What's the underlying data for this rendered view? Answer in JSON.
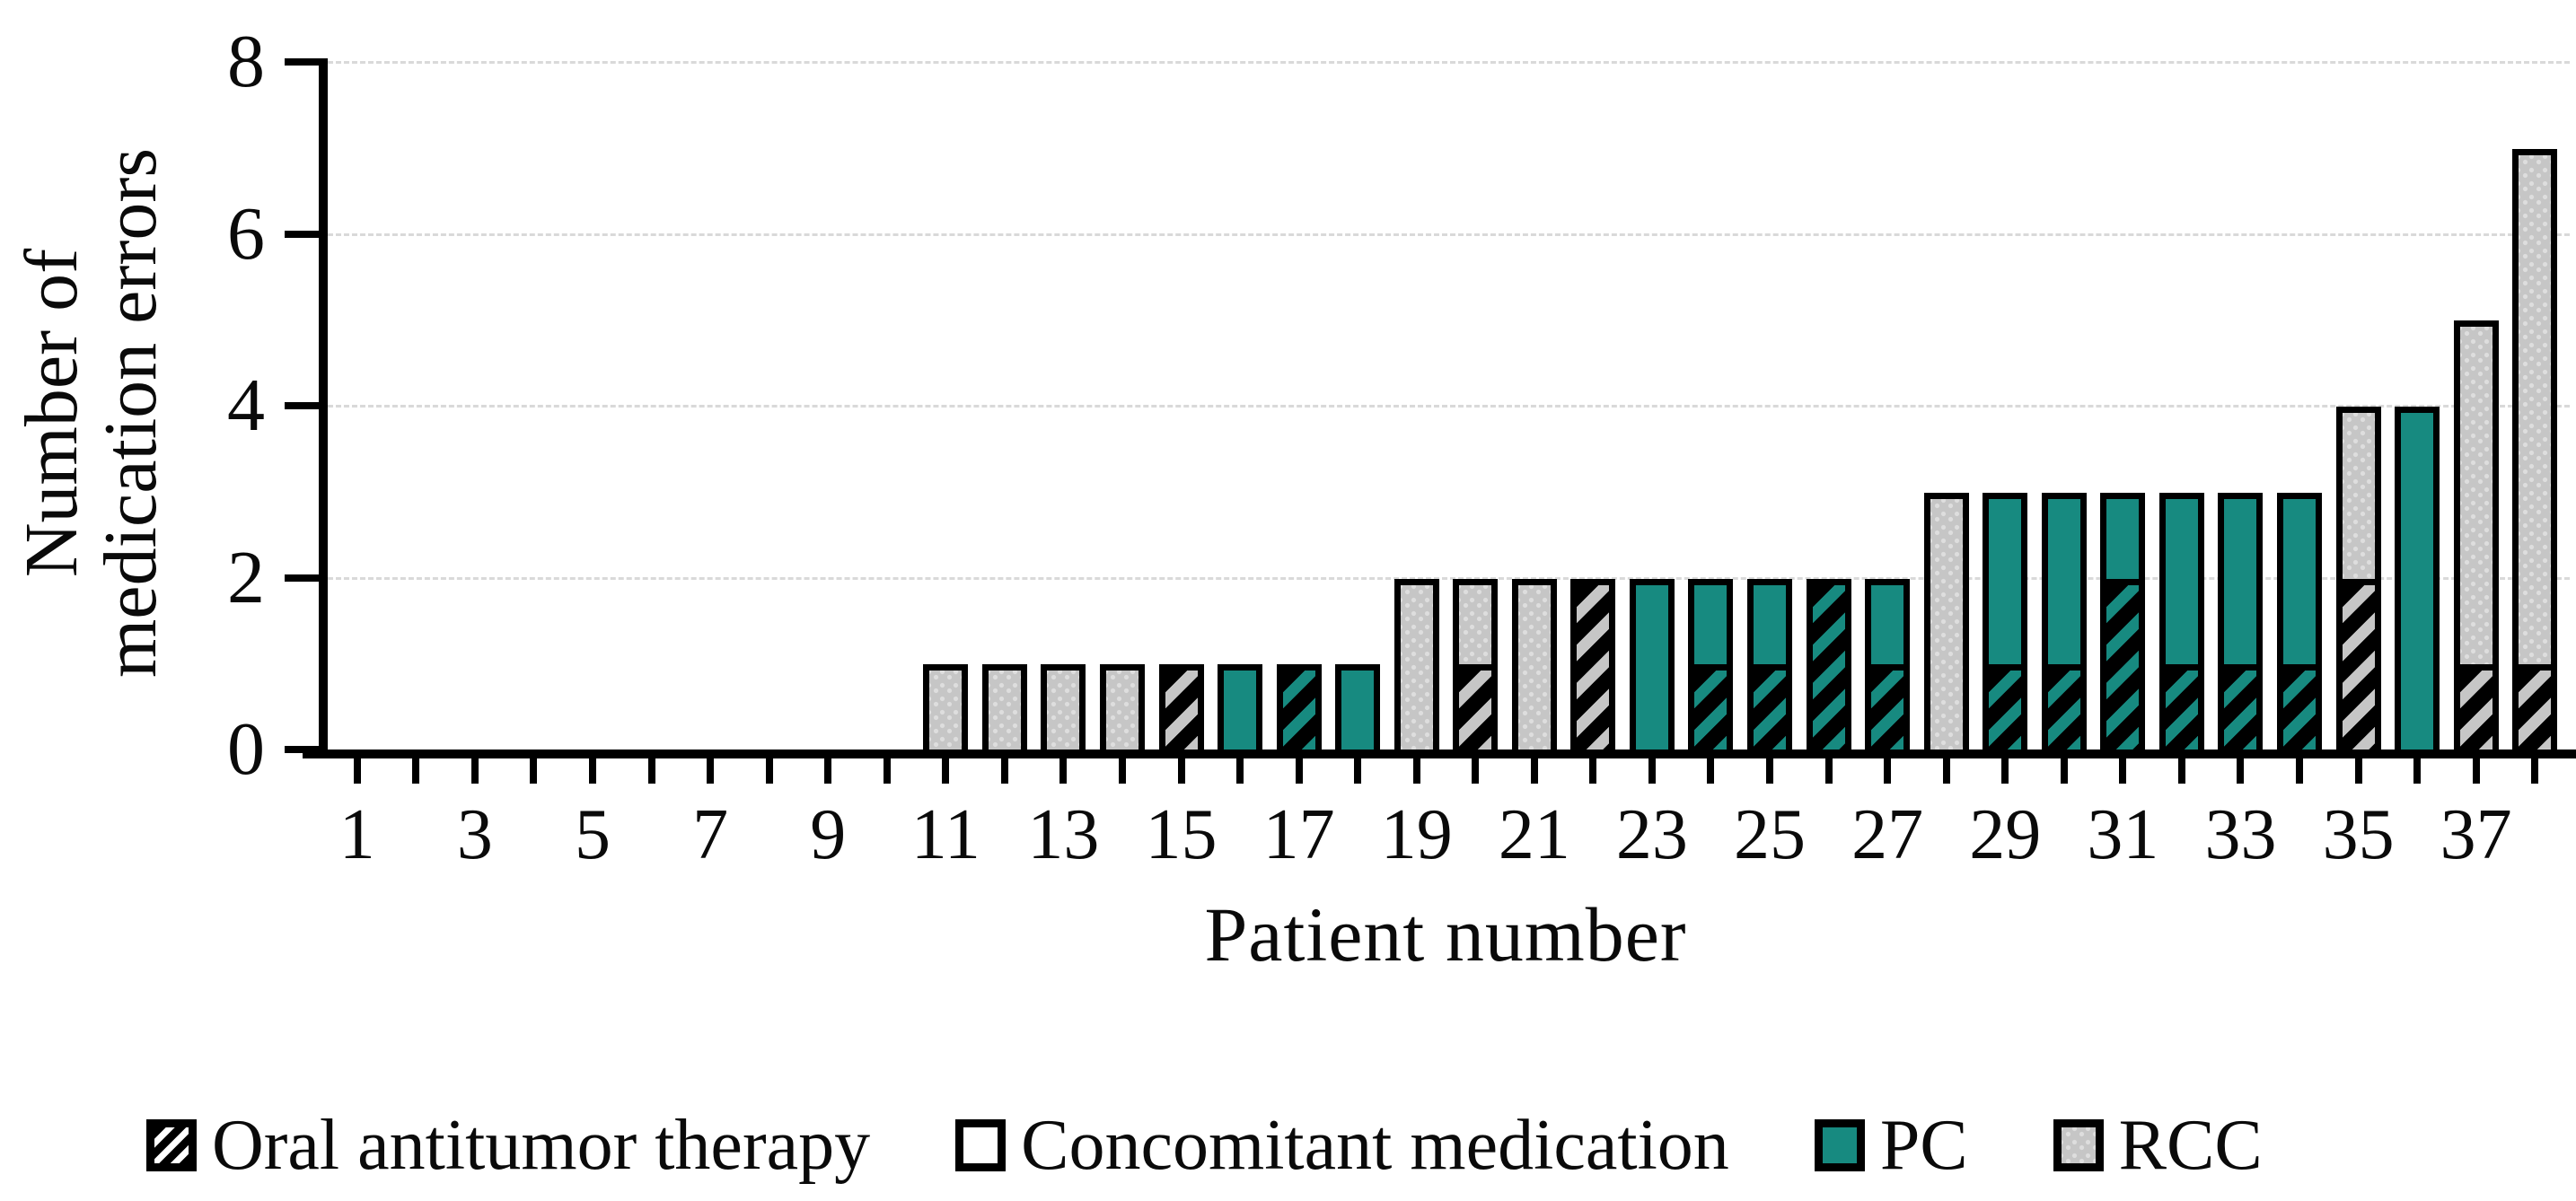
{
  "chart_data": {
    "type": "bar",
    "stacked": true,
    "title": "",
    "xlabel": "Patient number",
    "ylabel_lines": [
      "Number of",
      "medication errors"
    ],
    "ylim": [
      0,
      8
    ],
    "yticks": [
      0,
      2,
      4,
      6,
      8
    ],
    "n_categories": 38,
    "xtick_labels": [
      1,
      3,
      5,
      7,
      9,
      11,
      13,
      15,
      17,
      19,
      21,
      23,
      25,
      27,
      29,
      31,
      33,
      35,
      37
    ],
    "grid": "horizontal-dashed",
    "legend_position": "bottom",
    "legend": [
      {
        "key": "oat",
        "label": "Oral antitumor therapy",
        "swatch_style": "fill-oat"
      },
      {
        "key": "conc",
        "label": "Concomitant medication",
        "swatch_style": "fill-conc"
      },
      {
        "key": "pc",
        "label": "PC",
        "swatch_style": "fill-pc"
      },
      {
        "key": "rcc",
        "label": "RCC",
        "swatch_style": "fill-rcc"
      }
    ],
    "colors": {
      "pc_teal": "#178A80",
      "rcc_gray": "#C6C6C6",
      "bar_border": "#000000",
      "gridline": "#D9D9D9",
      "text": "#0A0A0A"
    },
    "segment_style_meaning": {
      "pc": "plain teal = concomitant medication error, PC patient",
      "rcc": "plain gray = concomitant medication error, RCC patient",
      "oat_pc": "hatched teal = oral antitumor therapy error, PC patient",
      "oat_rcc": "hatched gray = oral antitumor therapy error, RCC patient"
    },
    "bars": [
      {
        "patient": 1,
        "total": 0,
        "segments": []
      },
      {
        "patient": 2,
        "total": 0,
        "segments": []
      },
      {
        "patient": 3,
        "total": 0,
        "segments": []
      },
      {
        "patient": 4,
        "total": 0,
        "segments": []
      },
      {
        "patient": 5,
        "total": 0,
        "segments": []
      },
      {
        "patient": 6,
        "total": 0,
        "segments": []
      },
      {
        "patient": 7,
        "total": 0,
        "segments": []
      },
      {
        "patient": 8,
        "total": 0,
        "segments": []
      },
      {
        "patient": 9,
        "total": 0,
        "segments": []
      },
      {
        "patient": 10,
        "total": 0,
        "segments": []
      },
      {
        "patient": 11,
        "total": 1,
        "segments": [
          {
            "style": "rcc",
            "value": 1
          }
        ]
      },
      {
        "patient": 12,
        "total": 1,
        "segments": [
          {
            "style": "rcc",
            "value": 1
          }
        ]
      },
      {
        "patient": 13,
        "total": 1,
        "segments": [
          {
            "style": "rcc",
            "value": 1
          }
        ]
      },
      {
        "patient": 14,
        "total": 1,
        "segments": [
          {
            "style": "rcc",
            "value": 1
          }
        ]
      },
      {
        "patient": 15,
        "total": 1,
        "segments": [
          {
            "style": "oat_rcc",
            "value": 1
          }
        ]
      },
      {
        "patient": 16,
        "total": 1,
        "segments": [
          {
            "style": "pc",
            "value": 1
          }
        ]
      },
      {
        "patient": 17,
        "total": 1,
        "segments": [
          {
            "style": "oat_pc",
            "value": 1
          }
        ]
      },
      {
        "patient": 18,
        "total": 1,
        "segments": [
          {
            "style": "pc",
            "value": 1
          }
        ]
      },
      {
        "patient": 19,
        "total": 2,
        "segments": [
          {
            "style": "rcc",
            "value": 2
          }
        ]
      },
      {
        "patient": 20,
        "total": 2,
        "segments": [
          {
            "style": "oat_rcc",
            "value": 1
          },
          {
            "style": "rcc",
            "value": 1
          }
        ]
      },
      {
        "patient": 21,
        "total": 2,
        "segments": [
          {
            "style": "rcc",
            "value": 2
          }
        ]
      },
      {
        "patient": 22,
        "total": 2,
        "segments": [
          {
            "style": "oat_rcc",
            "value": 2
          }
        ]
      },
      {
        "patient": 23,
        "total": 2,
        "segments": [
          {
            "style": "pc",
            "value": 2
          }
        ]
      },
      {
        "patient": 24,
        "total": 2,
        "segments": [
          {
            "style": "oat_pc",
            "value": 1
          },
          {
            "style": "pc",
            "value": 1
          }
        ]
      },
      {
        "patient": 25,
        "total": 2,
        "segments": [
          {
            "style": "oat_pc",
            "value": 1
          },
          {
            "style": "pc",
            "value": 1
          }
        ]
      },
      {
        "patient": 26,
        "total": 2,
        "segments": [
          {
            "style": "oat_pc",
            "value": 2
          }
        ]
      },
      {
        "patient": 27,
        "total": 2,
        "segments": [
          {
            "style": "oat_pc",
            "value": 1
          },
          {
            "style": "pc",
            "value": 1
          }
        ]
      },
      {
        "patient": 28,
        "total": 3,
        "segments": [
          {
            "style": "rcc",
            "value": 3
          }
        ]
      },
      {
        "patient": 29,
        "total": 3,
        "segments": [
          {
            "style": "oat_pc",
            "value": 1
          },
          {
            "style": "pc",
            "value": 2
          }
        ]
      },
      {
        "patient": 30,
        "total": 3,
        "segments": [
          {
            "style": "oat_pc",
            "value": 1
          },
          {
            "style": "pc",
            "value": 2
          }
        ]
      },
      {
        "patient": 31,
        "total": 3,
        "segments": [
          {
            "style": "oat_pc",
            "value": 2
          },
          {
            "style": "pc",
            "value": 1
          }
        ]
      },
      {
        "patient": 32,
        "total": 3,
        "segments": [
          {
            "style": "oat_pc",
            "value": 1
          },
          {
            "style": "pc",
            "value": 2
          }
        ]
      },
      {
        "patient": 33,
        "total": 3,
        "segments": [
          {
            "style": "oat_pc",
            "value": 1
          },
          {
            "style": "pc",
            "value": 2
          }
        ]
      },
      {
        "patient": 34,
        "total": 3,
        "segments": [
          {
            "style": "oat_pc",
            "value": 1
          },
          {
            "style": "pc",
            "value": 2
          }
        ]
      },
      {
        "patient": 35,
        "total": 4,
        "segments": [
          {
            "style": "oat_rcc",
            "value": 2
          },
          {
            "style": "rcc",
            "value": 2
          }
        ]
      },
      {
        "patient": 36,
        "total": 4,
        "segments": [
          {
            "style": "pc",
            "value": 4
          }
        ]
      },
      {
        "patient": 37,
        "total": 5,
        "segments": [
          {
            "style": "oat_rcc",
            "value": 1
          },
          {
            "style": "rcc",
            "value": 4
          }
        ]
      },
      {
        "patient": 38,
        "total": 7,
        "segments": [
          {
            "style": "oat_rcc",
            "value": 1
          },
          {
            "style": "rcc",
            "value": 6
          }
        ]
      }
    ]
  }
}
